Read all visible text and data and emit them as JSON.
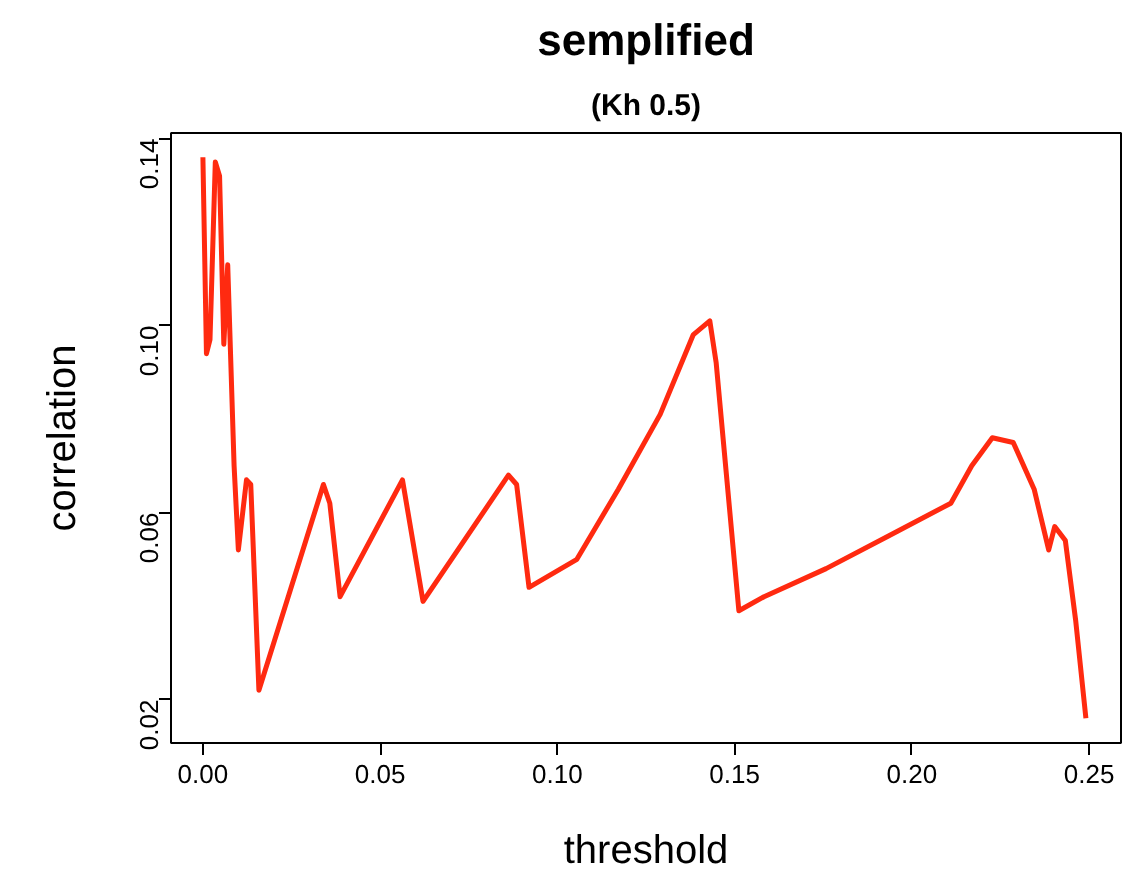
{
  "chart_data": {
    "type": "line",
    "title": "semplified",
    "subtitle": "(Kh 0.5)",
    "xlabel": "threshold",
    "ylabel": "correlation",
    "x": [
      0.0,
      0.001,
      0.002,
      0.0035,
      0.0047,
      0.0059,
      0.007,
      0.0088,
      0.01,
      0.0123,
      0.0135,
      0.0158,
      0.034,
      0.0358,
      0.0387,
      0.0563,
      0.0621,
      0.0862,
      0.0885,
      0.092,
      0.1055,
      0.1172,
      0.129,
      0.1383,
      0.143,
      0.1448,
      0.1512,
      0.1583,
      0.1758,
      0.1934,
      0.211,
      0.2169,
      0.2227,
      0.2286,
      0.2345,
      0.2386,
      0.2403,
      0.2433,
      0.2462,
      0.2491
    ],
    "series": [
      {
        "color": "#ff2a10",
        "values": [
          0.136,
          0.094,
          0.097,
          0.135,
          0.132,
          0.096,
          0.113,
          0.07,
          0.052,
          0.067,
          0.066,
          0.022,
          0.066,
          0.062,
          0.042,
          0.067,
          0.041,
          0.068,
          0.066,
          0.044,
          0.05,
          0.065,
          0.081,
          0.098,
          0.101,
          0.092,
          0.039,
          0.042,
          0.048,
          0.055,
          0.062,
          0.07,
          0.076,
          0.075,
          0.065,
          0.052,
          0.057,
          0.054,
          0.037,
          0.016
        ]
      }
    ],
    "xlim": [
      -0.009,
      0.259
    ],
    "ylim": [
      0.0107,
      0.1412
    ],
    "xticks": [
      {
        "value": 0.0,
        "label": "0.00"
      },
      0.05,
      {
        "value": 0.1,
        "label": "0.10"
      },
      0.15,
      {
        "value": 0.2,
        "label": "0.20"
      },
      0.25
    ],
    "yticks": [
      0.02,
      0.06,
      {
        "value": 0.1,
        "label": "0.10"
      },
      0.14
    ],
    "grid": false,
    "marker": "none",
    "line_style": "solid"
  }
}
